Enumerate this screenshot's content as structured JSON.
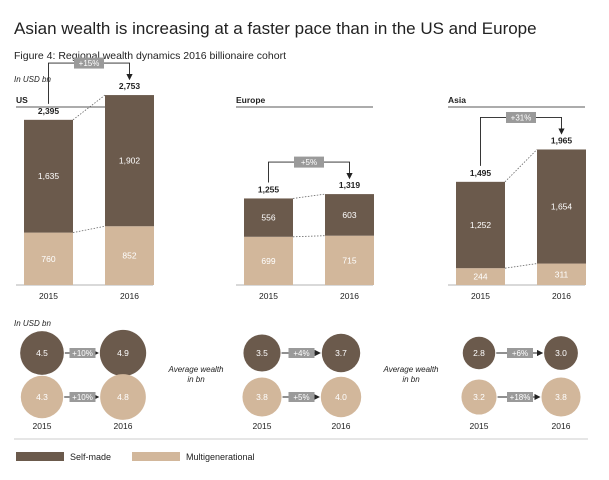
{
  "title": "Asian wealth is increasing at a faster pace than in the US and Europe",
  "subtitle": "Figure 4: Regional wealth dynamics 2016 billionaire cohort",
  "unit_label_top": "In USD bn",
  "unit_label_bottom": "In USD bn",
  "average_wealth_label": [
    "Average wealth",
    "in bn"
  ],
  "colors": {
    "self_made": "#6b5a4c",
    "multigenerational": "#d2b79b",
    "growth_badge": "#9a9a9a",
    "text": "#222222"
  },
  "legend": [
    {
      "name": "Self-made",
      "color": "#6b5a4c"
    },
    {
      "name": "Multigenerational",
      "color": "#d2b79b"
    }
  ],
  "chart_data": [
    {
      "type": "bar",
      "stacked": true,
      "region": "US",
      "categories": [
        "2015",
        "2016"
      ],
      "series": [
        {
          "name": "Multigenerational",
          "values": [
            760,
            852
          ]
        },
        {
          "name": "Self-made",
          "values": [
            1635,
            1902
          ]
        }
      ],
      "totals": [
        "2,395",
        "2,753"
      ],
      "labels": {
        "Multigenerational": [
          "760",
          "852"
        ],
        "Self-made": [
          "1,635",
          "1,902"
        ]
      },
      "growth": "+15%",
      "ylim": [
        0,
        2900
      ]
    },
    {
      "type": "bar",
      "stacked": true,
      "region": "Europe",
      "categories": [
        "2015",
        "2016"
      ],
      "series": [
        {
          "name": "Multigenerational",
          "values": [
            699,
            715
          ]
        },
        {
          "name": "Self-made",
          "values": [
            556,
            603
          ]
        }
      ],
      "totals": [
        "1,255",
        "1,319"
      ],
      "labels": {
        "Multigenerational": [
          "699",
          "715"
        ],
        "Self-made": [
          "556",
          "603"
        ]
      },
      "growth": "+5%",
      "ylim": [
        0,
        2900
      ]
    },
    {
      "type": "bar",
      "stacked": true,
      "region": "Asia",
      "categories": [
        "2015",
        "2016"
      ],
      "series": [
        {
          "name": "Multigenerational",
          "values": [
            244,
            311
          ]
        },
        {
          "name": "Self-made",
          "values": [
            1252,
            1654
          ]
        }
      ],
      "totals": [
        "1,495",
        "1,965"
      ],
      "labels": {
        "Multigenerational": [
          "244",
          "311"
        ],
        "Self-made": [
          "1,252",
          "1,654"
        ]
      },
      "growth": "+31%",
      "ylim": [
        0,
        2900
      ]
    }
  ],
  "average_wealth": [
    {
      "region": "US",
      "years": [
        "2015",
        "2016"
      ],
      "self_made": {
        "values": [
          4.5,
          4.9
        ],
        "labels": [
          "4.5",
          "4.9"
        ],
        "growth": "+10%"
      },
      "multigenerational": {
        "values": [
          4.3,
          4.8
        ],
        "labels": [
          "4.3",
          "4.8"
        ],
        "growth": "+10%"
      }
    },
    {
      "region": "Europe",
      "years": [
        "2015",
        "2016"
      ],
      "self_made": {
        "values": [
          3.5,
          3.7
        ],
        "labels": [
          "3.5",
          "3.7"
        ],
        "growth": "+4%"
      },
      "multigenerational": {
        "values": [
          3.8,
          4.0
        ],
        "labels": [
          "3.8",
          "4.0"
        ],
        "growth": "+5%"
      }
    },
    {
      "region": "Asia",
      "years": [
        "2015",
        "2016"
      ],
      "self_made": {
        "values": [
          2.8,
          3.0
        ],
        "labels": [
          "2.8",
          "3.0"
        ],
        "growth": "+6%"
      },
      "multigenerational": {
        "values": [
          3.2,
          3.8
        ],
        "labels": [
          "3.2",
          "3.8"
        ],
        "growth": "+18%"
      }
    }
  ]
}
